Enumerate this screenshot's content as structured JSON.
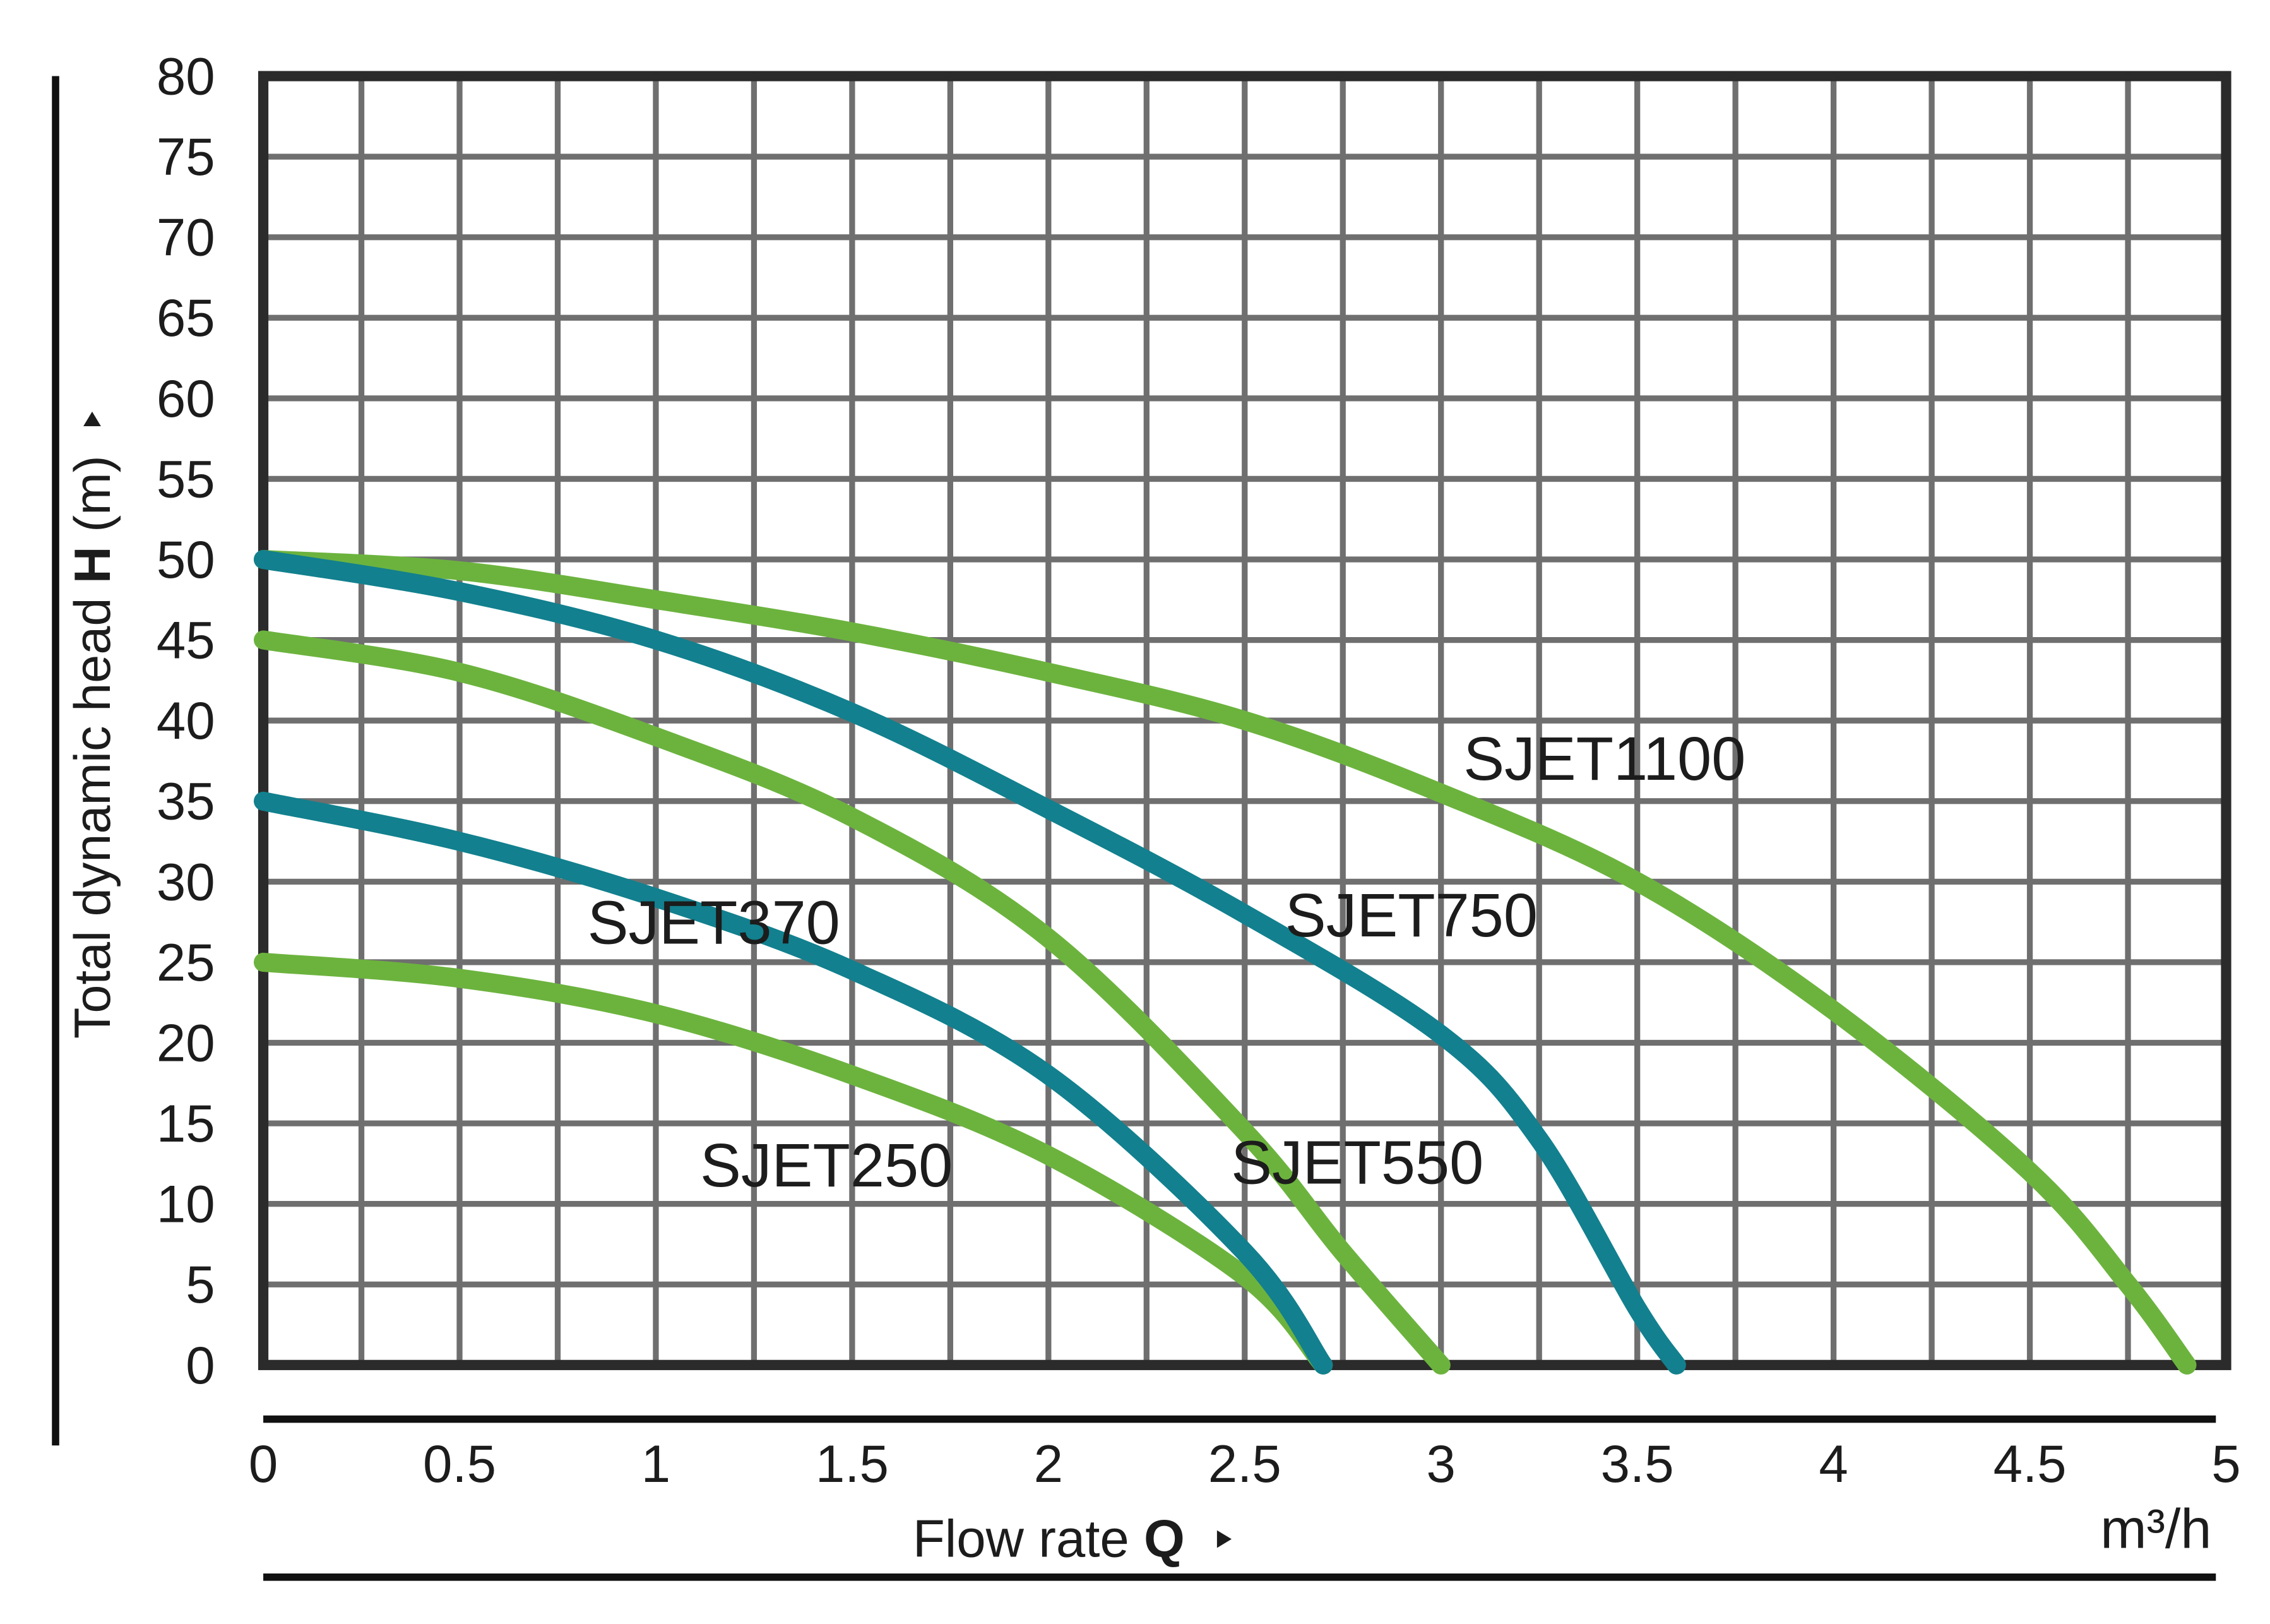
{
  "chart_data": {
    "type": "line",
    "xlabel": "Flow rate",
    "xlabel_symbol": "Q",
    "x_unit": "m³/h",
    "ylabel": "Total dynamic head",
    "ylabel_symbol": "H",
    "y_unit": "(m)",
    "xlim": [
      0,
      5
    ],
    "ylim": [
      0,
      80
    ],
    "x_ticks": [
      "0",
      "0.5",
      "1",
      "1.5",
      "2",
      "2.5",
      "3",
      "3.5",
      "4",
      "4.5",
      "5"
    ],
    "y_ticks": [
      "0",
      "5",
      "10",
      "15",
      "20",
      "25",
      "30",
      "35",
      "40",
      "45",
      "50",
      "55",
      "60",
      "65",
      "70",
      "75",
      "80"
    ],
    "grid": true,
    "grid_x_step": 0.25,
    "grid_y_step": 5,
    "series": [
      {
        "name": "SJET250",
        "color": "#6cb33e",
        "x": [
          0,
          0.5,
          1,
          1.5,
          2,
          2.5,
          2.7
        ],
        "y": [
          25,
          24,
          21.8,
          18,
          13,
          5.5,
          0
        ]
      },
      {
        "name": "SJET370",
        "color": "#12808e",
        "x": [
          0,
          0.5,
          1,
          1.5,
          2,
          2.5,
          2.7
        ],
        "y": [
          35,
          32.5,
          29,
          24.5,
          18,
          7,
          0
        ]
      },
      {
        "name": "SJET550",
        "color": "#6cb33e",
        "x": [
          0,
          0.5,
          1,
          1.5,
          2,
          2.5,
          2.75,
          3
        ],
        "y": [
          45,
          43,
          39,
          34,
          26.5,
          14.5,
          7,
          0
        ]
      },
      {
        "name": "SJET750",
        "color": "#12808e",
        "x": [
          0,
          0.5,
          1,
          1.5,
          2,
          2.5,
          3,
          3.25,
          3.5,
          3.6
        ],
        "y": [
          50,
          48,
          45,
          40.5,
          34.5,
          28,
          20.5,
          14,
          3.5,
          0
        ]
      },
      {
        "name": "SJET1100",
        "color": "#6cb33e",
        "x": [
          0,
          0.5,
          1,
          1.5,
          2,
          2.5,
          3,
          3.5,
          4,
          4.5,
          4.75,
          4.9
        ],
        "y": [
          50,
          49.3,
          47.5,
          45.5,
          43,
          40,
          35.5,
          30,
          22,
          12,
          5,
          0
        ]
      }
    ]
  }
}
